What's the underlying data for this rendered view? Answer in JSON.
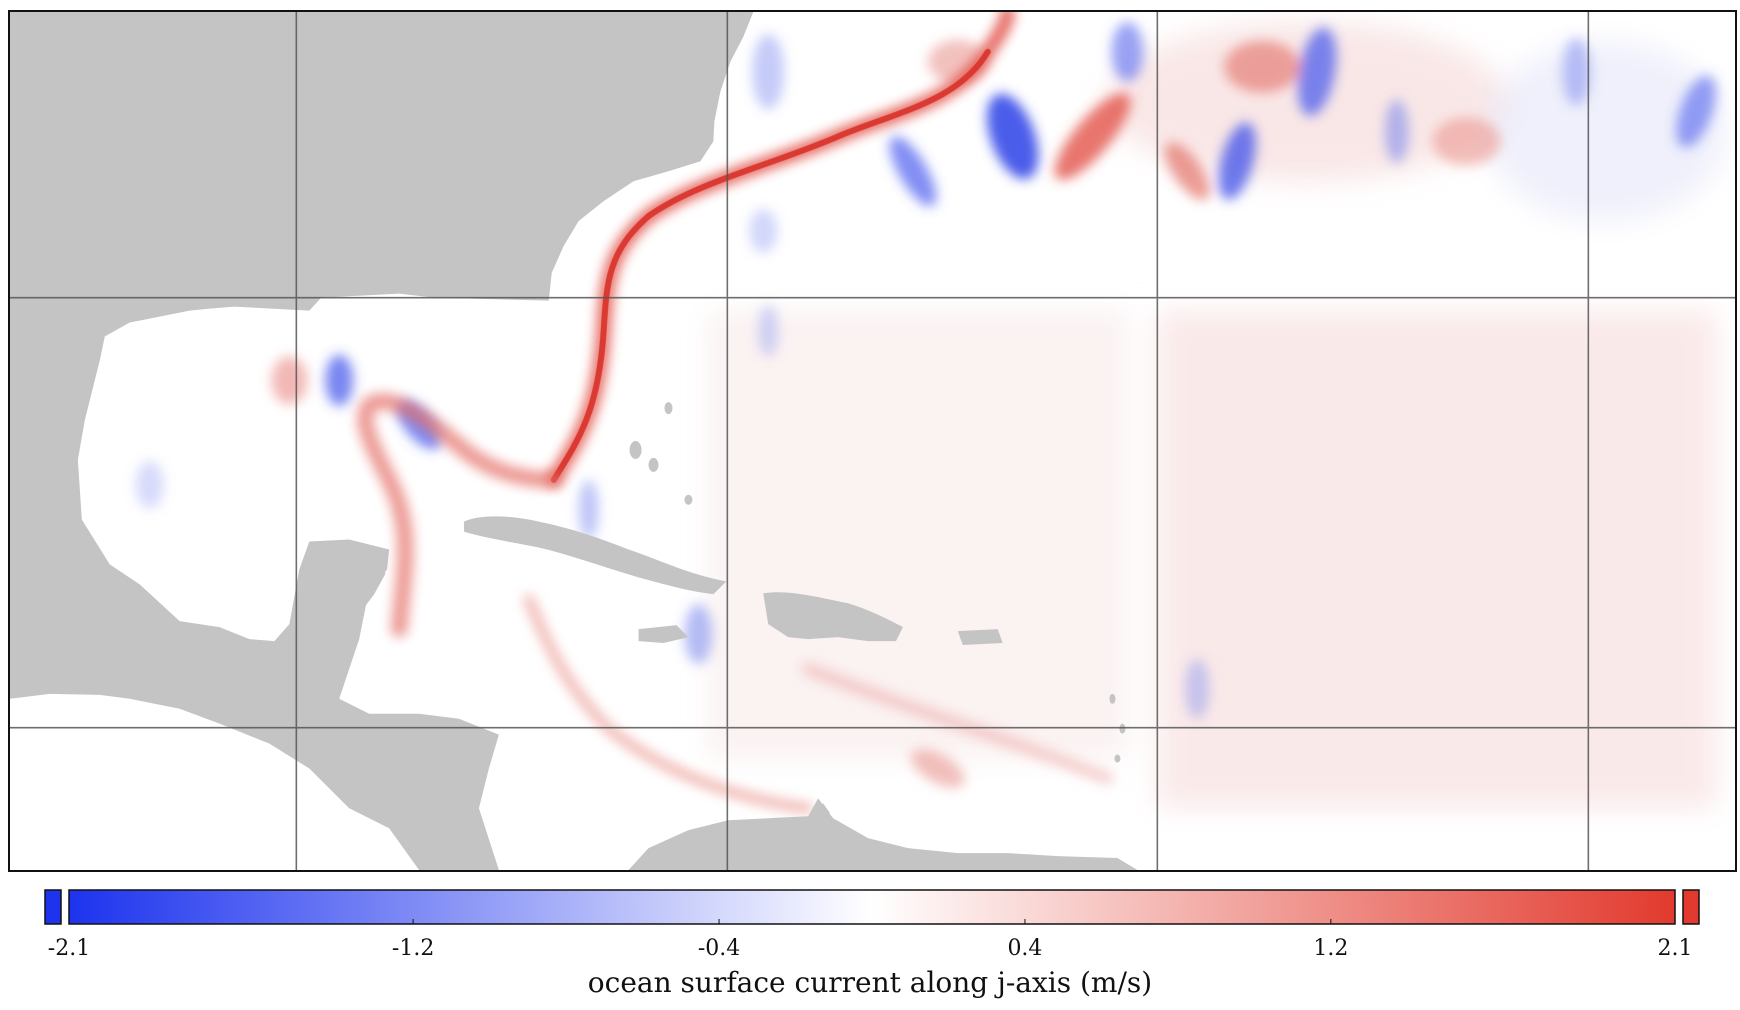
{
  "colors": {
    "land": "#c4c4c4",
    "positive": "#e23a2e",
    "negative": "#1d33ee",
    "neutral": "#ffffff",
    "grid": "#555555"
  },
  "colorbar": {
    "min": -2.1,
    "max": 2.1,
    "ticks": [
      {
        "value": -2.1,
        "label": "-2.1"
      },
      {
        "value": -1.2,
        "label": "-1.2"
      },
      {
        "value": -0.4,
        "label": "-0.4"
      },
      {
        "value": 0.4,
        "label": "0.4"
      },
      {
        "value": 1.2,
        "label": "1.2"
      },
      {
        "value": 2.1,
        "label": "2.1"
      }
    ],
    "title": "ocean surface current along j-axis (m/s)",
    "extend": "both"
  }
}
